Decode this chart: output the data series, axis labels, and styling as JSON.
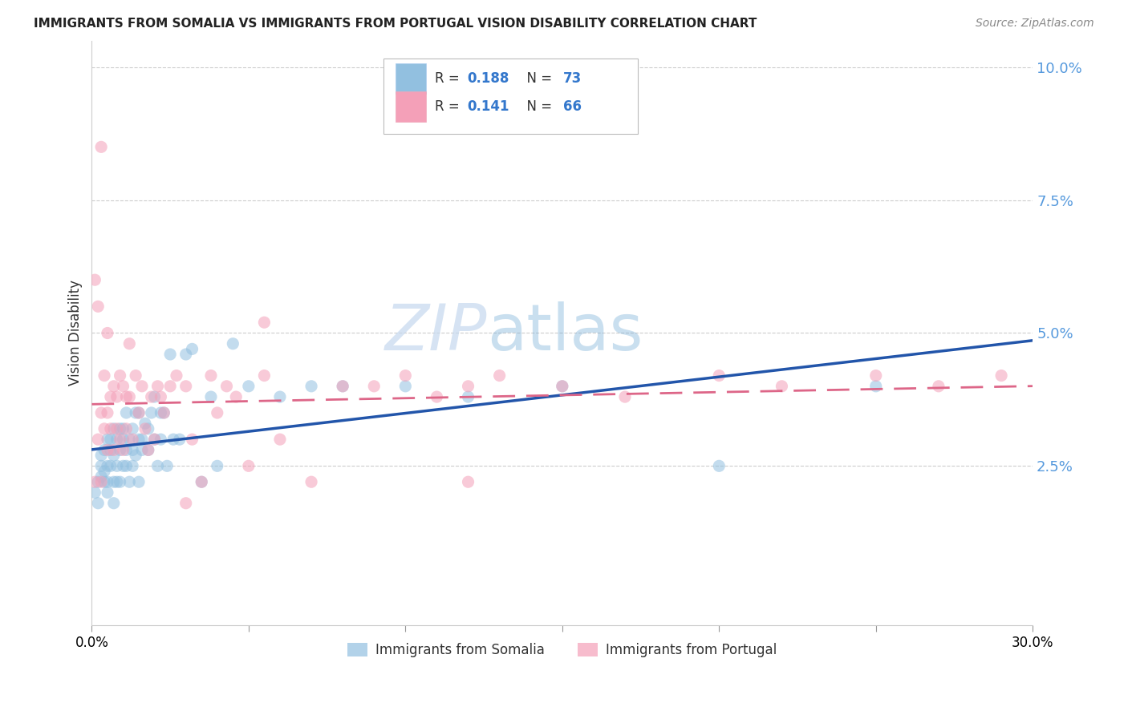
{
  "title": "IMMIGRANTS FROM SOMALIA VS IMMIGRANTS FROM PORTUGAL VISION DISABILITY CORRELATION CHART",
  "source": "Source: ZipAtlas.com",
  "ylabel": "Vision Disability",
  "xlim": [
    0.0,
    0.3
  ],
  "ylim": [
    -0.005,
    0.105
  ],
  "yticks": [
    0.025,
    0.05,
    0.075,
    0.1
  ],
  "ytick_labels": [
    "2.5%",
    "5.0%",
    "7.5%",
    "10.0%"
  ],
  "xticks": [
    0.0,
    0.05,
    0.1,
    0.15,
    0.2,
    0.25,
    0.3
  ],
  "xtick_labels": [
    "0.0%",
    "",
    "",
    "",
    "",
    "",
    "30.0%"
  ],
  "somalia_color": "#92c0e0",
  "portugal_color": "#f4a0b8",
  "somalia_R": 0.188,
  "somalia_N": 73,
  "portugal_R": 0.141,
  "portugal_N": 66,
  "trend_color_somalia": "#2255aa",
  "trend_color_portugal": "#dd6688",
  "watermark_zip": "ZIP",
  "watermark_atlas": "atlas",
  "somalia_x": [
    0.001,
    0.002,
    0.002,
    0.003,
    0.003,
    0.003,
    0.004,
    0.004,
    0.004,
    0.005,
    0.005,
    0.005,
    0.005,
    0.006,
    0.006,
    0.006,
    0.007,
    0.007,
    0.007,
    0.007,
    0.008,
    0.008,
    0.008,
    0.009,
    0.009,
    0.009,
    0.01,
    0.01,
    0.01,
    0.011,
    0.011,
    0.011,
    0.012,
    0.012,
    0.013,
    0.013,
    0.013,
    0.014,
    0.014,
    0.015,
    0.015,
    0.015,
    0.016,
    0.016,
    0.017,
    0.018,
    0.018,
    0.019,
    0.02,
    0.02,
    0.021,
    0.022,
    0.022,
    0.023,
    0.024,
    0.025,
    0.026,
    0.028,
    0.03,
    0.032,
    0.035,
    0.038,
    0.04,
    0.045,
    0.05,
    0.06,
    0.07,
    0.08,
    0.1,
    0.12,
    0.15,
    0.2,
    0.25
  ],
  "somalia_y": [
    0.02,
    0.022,
    0.018,
    0.025,
    0.027,
    0.023,
    0.022,
    0.028,
    0.024,
    0.02,
    0.025,
    0.03,
    0.022,
    0.028,
    0.03,
    0.025,
    0.022,
    0.027,
    0.032,
    0.018,
    0.025,
    0.03,
    0.022,
    0.028,
    0.032,
    0.022,
    0.025,
    0.03,
    0.032,
    0.025,
    0.028,
    0.035,
    0.03,
    0.022,
    0.028,
    0.032,
    0.025,
    0.035,
    0.027,
    0.03,
    0.035,
    0.022,
    0.03,
    0.028,
    0.033,
    0.028,
    0.032,
    0.035,
    0.03,
    0.038,
    0.025,
    0.03,
    0.035,
    0.035,
    0.025,
    0.046,
    0.03,
    0.03,
    0.046,
    0.047,
    0.022,
    0.038,
    0.025,
    0.048,
    0.04,
    0.038,
    0.04,
    0.04,
    0.04,
    0.038,
    0.04,
    0.025,
    0.04
  ],
  "portugal_x": [
    0.001,
    0.001,
    0.002,
    0.002,
    0.003,
    0.003,
    0.004,
    0.004,
    0.005,
    0.005,
    0.006,
    0.006,
    0.007,
    0.007,
    0.008,
    0.008,
    0.009,
    0.009,
    0.01,
    0.01,
    0.011,
    0.011,
    0.012,
    0.013,
    0.014,
    0.015,
    0.016,
    0.017,
    0.018,
    0.019,
    0.02,
    0.021,
    0.022,
    0.023,
    0.025,
    0.027,
    0.03,
    0.032,
    0.035,
    0.038,
    0.04,
    0.043,
    0.046,
    0.05,
    0.055,
    0.06,
    0.07,
    0.08,
    0.09,
    0.1,
    0.11,
    0.12,
    0.13,
    0.15,
    0.17,
    0.2,
    0.22,
    0.25,
    0.27,
    0.29,
    0.003,
    0.005,
    0.012,
    0.03,
    0.055,
    0.12
  ],
  "portugal_y": [
    0.06,
    0.022,
    0.03,
    0.055,
    0.022,
    0.035,
    0.032,
    0.042,
    0.028,
    0.035,
    0.032,
    0.038,
    0.028,
    0.04,
    0.032,
    0.038,
    0.03,
    0.042,
    0.028,
    0.04,
    0.038,
    0.032,
    0.038,
    0.03,
    0.042,
    0.035,
    0.04,
    0.032,
    0.028,
    0.038,
    0.03,
    0.04,
    0.038,
    0.035,
    0.04,
    0.042,
    0.04,
    0.03,
    0.022,
    0.042,
    0.035,
    0.04,
    0.038,
    0.025,
    0.042,
    0.03,
    0.022,
    0.04,
    0.04,
    0.042,
    0.038,
    0.04,
    0.042,
    0.04,
    0.038,
    0.042,
    0.04,
    0.042,
    0.04,
    0.042,
    0.085,
    0.05,
    0.048,
    0.018,
    0.052,
    0.022
  ]
}
